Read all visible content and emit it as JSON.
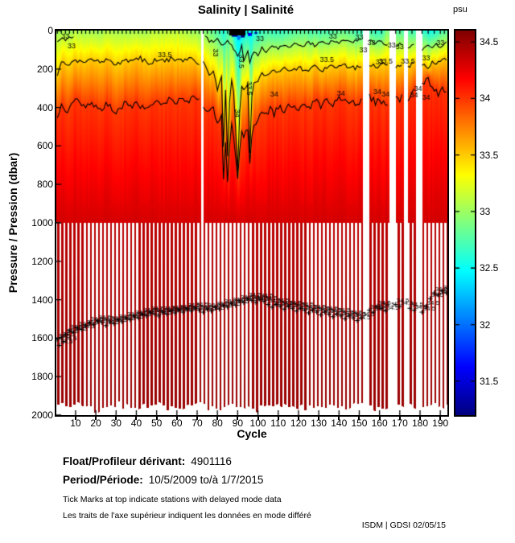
{
  "chart_data": {
    "type": "heatmap",
    "title": "Salinity | Salinité",
    "xlabel": "Cycle",
    "ylabel": "Pressure / Pression (dbar)",
    "x_range": [
      1,
      193
    ],
    "y_range": [
      0,
      2000
    ],
    "x_ticks": [
      10,
      20,
      30,
      40,
      50,
      60,
      70,
      80,
      90,
      100,
      110,
      120,
      130,
      140,
      150,
      160,
      170,
      180,
      190
    ],
    "y_ticks": [
      0,
      200,
      400,
      600,
      800,
      1000,
      1200,
      1400,
      1600,
      1800,
      2000
    ],
    "grid": false,
    "colorbar": {
      "label": "psu",
      "ticks": [
        34.5,
        34,
        33.5,
        33,
        32.5,
        32,
        31.5
      ],
      "value_range": [
        31.2,
        34.6
      ],
      "colormap": "jet"
    },
    "deep_section_top": 1000,
    "deep_value": "34.5",
    "missing_cycles": [
      [
        72,
        72
      ],
      [
        152,
        154
      ],
      [
        165,
        167
      ],
      [
        172,
        173
      ],
      [
        178,
        180
      ]
    ],
    "surface_salinity": [
      [
        1,
        33.0
      ],
      [
        10,
        33.05
      ],
      [
        20,
        33.0
      ],
      [
        30,
        33.06
      ],
      [
        40,
        33.0
      ],
      [
        50,
        33.08
      ],
      [
        60,
        33.1
      ],
      [
        68,
        33.0
      ],
      [
        74,
        32.9
      ],
      [
        80,
        32.72
      ],
      [
        83,
        32.55
      ],
      [
        86,
        32.8
      ],
      [
        88,
        32.45
      ],
      [
        90,
        32.35
      ],
      [
        93,
        32.5
      ],
      [
        96,
        32.42
      ],
      [
        99,
        32.6
      ],
      [
        103,
        32.72
      ],
      [
        108,
        32.62
      ],
      [
        115,
        32.7
      ],
      [
        122,
        32.78
      ],
      [
        130,
        32.68
      ],
      [
        138,
        32.76
      ],
      [
        145,
        32.8
      ],
      [
        150,
        32.62
      ],
      [
        155,
        32.7
      ],
      [
        160,
        32.6
      ],
      [
        163,
        32.88
      ],
      [
        168,
        32.78
      ],
      [
        175,
        32.68
      ],
      [
        182,
        32.58
      ],
      [
        186,
        32.5
      ],
      [
        190,
        32.68
      ],
      [
        193,
        32.78
      ]
    ],
    "iso_33_5_depth": [
      [
        1,
        235
      ],
      [
        3,
        160
      ],
      [
        6,
        185
      ],
      [
        10,
        150
      ],
      [
        14,
        172
      ],
      [
        18,
        148
      ],
      [
        22,
        168
      ],
      [
        26,
        152
      ],
      [
        30,
        176
      ],
      [
        34,
        150
      ],
      [
        38,
        162
      ],
      [
        42,
        146
      ],
      [
        46,
        166
      ],
      [
        50,
        150
      ],
      [
        54,
        162
      ],
      [
        58,
        142
      ],
      [
        62,
        156
      ],
      [
        66,
        146
      ],
      [
        70,
        162
      ],
      [
        74,
        175
      ],
      [
        76,
        240
      ],
      [
        78,
        200
      ],
      [
        80,
        310
      ],
      [
        82,
        235
      ],
      [
        83,
        600
      ],
      [
        84,
        310
      ],
      [
        85,
        645
      ],
      [
        86,
        360
      ],
      [
        87,
        255
      ],
      [
        88,
        310
      ],
      [
        90,
        740
      ],
      [
        91,
        410
      ],
      [
        92,
        285
      ],
      [
        93,
        305
      ],
      [
        95,
        265
      ],
      [
        96,
        645
      ],
      [
        97,
        355
      ],
      [
        98,
        285
      ],
      [
        100,
        262
      ],
      [
        102,
        225
      ],
      [
        104,
        232
      ],
      [
        107,
        205
      ],
      [
        110,
        218
      ],
      [
        113,
        198
      ],
      [
        116,
        212
      ],
      [
        120,
        192
      ],
      [
        124,
        206
      ],
      [
        128,
        188
      ],
      [
        132,
        202
      ],
      [
        136,
        186
      ],
      [
        140,
        196
      ],
      [
        144,
        182
      ],
      [
        148,
        196
      ],
      [
        151,
        186
      ],
      [
        155,
        176
      ],
      [
        158,
        192
      ],
      [
        160,
        176
      ],
      [
        163,
        182
      ],
      [
        167,
        192
      ],
      [
        170,
        182
      ],
      [
        174,
        186
      ],
      [
        177,
        176
      ],
      [
        181,
        182
      ],
      [
        184,
        192
      ],
      [
        186,
        172
      ],
      [
        188,
        162
      ],
      [
        190,
        152
      ],
      [
        193,
        158
      ]
    ],
    "iso_34_depth": [
      [
        1,
        455
      ],
      [
        3,
        385
      ],
      [
        6,
        425
      ],
      [
        10,
        362
      ],
      [
        14,
        402
      ],
      [
        18,
        372
      ],
      [
        22,
        412
      ],
      [
        26,
        382
      ],
      [
        30,
        422
      ],
      [
        34,
        382
      ],
      [
        38,
        402
      ],
      [
        41,
        372
      ],
      [
        44,
        422
      ],
      [
        47,
        382
      ],
      [
        50,
        362
      ],
      [
        53,
        392
      ],
      [
        56,
        362
      ],
      [
        59,
        382
      ],
      [
        62,
        352
      ],
      [
        65,
        372
      ],
      [
        68,
        342
      ],
      [
        70,
        362
      ],
      [
        73,
        385
      ],
      [
        76,
        425
      ],
      [
        78,
        395
      ],
      [
        80,
        485
      ],
      [
        82,
        445
      ],
      [
        83,
        785
      ],
      [
        84,
        565
      ],
      [
        85,
        805
      ],
      [
        86,
        605
      ],
      [
        87,
        485
      ],
      [
        88,
        565
      ],
      [
        90,
        785
      ],
      [
        91,
        625
      ],
      [
        92,
        525
      ],
      [
        93,
        565
      ],
      [
        95,
        505
      ],
      [
        96,
        705
      ],
      [
        97,
        565
      ],
      [
        98,
        485
      ],
      [
        100,
        465
      ],
      [
        102,
        425
      ],
      [
        104,
        445
      ],
      [
        106,
        405
      ],
      [
        108,
        435
      ],
      [
        110,
        395
      ],
      [
        113,
        425
      ],
      [
        116,
        385
      ],
      [
        119,
        415
      ],
      [
        122,
        375
      ],
      [
        125,
        405
      ],
      [
        128,
        365
      ],
      [
        131,
        395
      ],
      [
        134,
        355
      ],
      [
        137,
        385
      ],
      [
        140,
        345
      ],
      [
        143,
        375
      ],
      [
        146,
        355
      ],
      [
        149,
        385
      ],
      [
        151,
        365
      ],
      [
        155,
        345
      ],
      [
        158,
        375
      ],
      [
        160,
        355
      ],
      [
        163,
        385
      ],
      [
        166,
        365
      ],
      [
        168,
        345
      ],
      [
        170,
        365
      ],
      [
        172,
        335
      ],
      [
        174,
        355
      ],
      [
        176,
        325
      ],
      [
        178,
        305
      ],
      [
        180,
        285
      ],
      [
        182,
        262
      ],
      [
        183,
        252
      ],
      [
        185,
        272
      ],
      [
        187,
        305
      ],
      [
        189,
        325
      ],
      [
        191,
        305
      ],
      [
        193,
        325
      ]
    ],
    "iso_33_segments": [
      [
        [
          1,
          62
        ],
        [
          3,
          36
        ],
        [
          5,
          55
        ],
        [
          7,
          40
        ],
        [
          9,
          28
        ]
      ],
      [
        [
          74,
          30
        ],
        [
          76,
          55
        ],
        [
          78,
          62
        ],
        [
          80,
          42
        ],
        [
          83,
          82
        ],
        [
          85,
          52
        ],
        [
          88,
          92
        ],
        [
          90,
          132
        ],
        [
          92,
          82
        ],
        [
          93,
          152
        ],
        [
          95,
          102
        ],
        [
          96,
          162
        ],
        [
          98,
          112
        ],
        [
          100,
          132
        ],
        [
          102,
          92
        ],
        [
          104,
          112
        ],
        [
          107,
          82
        ],
        [
          110,
          96
        ],
        [
          113,
          72
        ],
        [
          116,
          86
        ],
        [
          119,
          66
        ],
        [
          122,
          82
        ],
        [
          125,
          62
        ],
        [
          128,
          76
        ],
        [
          131,
          56
        ],
        [
          134,
          70
        ],
        [
          137,
          52
        ],
        [
          140,
          66
        ],
        [
          143,
          46
        ],
        [
          146,
          60
        ],
        [
          149,
          50
        ],
        [
          151,
          42
        ]
      ],
      [
        [
          155,
          46
        ],
        [
          158,
          72
        ],
        [
          160,
          52
        ],
        [
          163,
          82
        ],
        [
          166,
          62
        ],
        [
          168,
          86
        ],
        [
          170,
          66
        ],
        [
          174,
          92
        ],
        [
          177,
          72
        ],
        [
          181,
          96
        ],
        [
          184,
          76
        ],
        [
          186,
          92
        ],
        [
          188,
          72
        ],
        [
          190,
          86
        ],
        [
          193,
          62
        ]
      ]
    ],
    "profile_bottom_depth": [
      [
        1,
        1958
      ],
      [
        10,
        1948
      ],
      [
        20,
        1972
      ],
      [
        30,
        1944
      ],
      [
        40,
        1968
      ],
      [
        50,
        1948
      ],
      [
        60,
        1972
      ],
      [
        70,
        1944
      ],
      [
        80,
        1968
      ],
      [
        90,
        1948
      ],
      [
        100,
        1972
      ],
      [
        110,
        1948
      ],
      [
        120,
        1968
      ],
      [
        130,
        1944
      ],
      [
        140,
        1968
      ],
      [
        150,
        1948
      ],
      [
        160,
        1972
      ],
      [
        170,
        1948
      ],
      [
        180,
        1968
      ],
      [
        190,
        1948
      ],
      [
        193,
        1958
      ]
    ],
    "deep_point_labels": [
      [
        1,
        1595
      ],
      [
        2,
        1625
      ],
      [
        3,
        1585
      ],
      [
        4,
        1605
      ],
      [
        5,
        1568
      ],
      [
        7,
        1548
      ],
      [
        9,
        1556
      ],
      [
        11,
        1532
      ],
      [
        13,
        1542
      ],
      [
        15,
        1522
      ],
      [
        17,
        1508
      ],
      [
        19,
        1516
      ],
      [
        21,
        1498
      ],
      [
        23,
        1506
      ],
      [
        25,
        1522
      ],
      [
        27,
        1502
      ],
      [
        29,
        1512
      ],
      [
        31,
        1492
      ],
      [
        33,
        1502
      ],
      [
        35,
        1482
      ],
      [
        37,
        1492
      ],
      [
        39,
        1472
      ],
      [
        41,
        1482
      ],
      [
        43,
        1462
      ],
      [
        45,
        1472
      ],
      [
        47,
        1452
      ],
      [
        49,
        1462
      ],
      [
        51,
        1472
      ],
      [
        53,
        1452
      ],
      [
        55,
        1462
      ],
      [
        57,
        1446
      ],
      [
        59,
        1456
      ],
      [
        61,
        1442
      ],
      [
        63,
        1452
      ],
      [
        65,
        1436
      ],
      [
        67,
        1446
      ],
      [
        69,
        1432
      ],
      [
        71,
        1442
      ],
      [
        73,
        1452
      ],
      [
        75,
        1436
      ],
      [
        77,
        1446
      ],
      [
        79,
        1426
      ],
      [
        81,
        1436
      ],
      [
        83,
        1416
      ],
      [
        85,
        1426
      ],
      [
        87,
        1406
      ],
      [
        89,
        1416
      ],
      [
        91,
        1392
      ],
      [
        93,
        1402
      ],
      [
        95,
        1382
      ],
      [
        97,
        1392
      ],
      [
        99,
        1402
      ],
      [
        101,
        1386
      ],
      [
        103,
        1396
      ],
      [
        105,
        1412
      ],
      [
        107,
        1426
      ],
      [
        109,
        1412
      ],
      [
        111,
        1422
      ],
      [
        113,
        1436
      ],
      [
        115,
        1422
      ],
      [
        117,
        1432
      ],
      [
        119,
        1446
      ],
      [
        121,
        1432
      ],
      [
        123,
        1442
      ],
      [
        125,
        1456
      ],
      [
        127,
        1442
      ],
      [
        129,
        1452
      ],
      [
        131,
        1466
      ],
      [
        133,
        1452
      ],
      [
        135,
        1462
      ],
      [
        137,
        1476
      ],
      [
        139,
        1462
      ],
      [
        141,
        1472
      ],
      [
        143,
        1486
      ],
      [
        145,
        1472
      ],
      [
        147,
        1482
      ],
      [
        149,
        1496
      ],
      [
        151,
        1482
      ],
      [
        155,
        1442
      ],
      [
        157,
        1452
      ],
      [
        159,
        1422
      ],
      [
        161,
        1432
      ],
      [
        163,
        1446
      ],
      [
        168,
        1412
      ],
      [
        170,
        1422
      ],
      [
        175,
        1432
      ],
      [
        177,
        1442
      ],
      [
        181,
        1452
      ],
      [
        183,
        1422
      ],
      [
        185,
        1382
      ],
      [
        187,
        1352
      ],
      [
        189,
        1362
      ],
      [
        191,
        1342
      ],
      [
        193,
        1352
      ]
    ],
    "contour_labels": [
      {
        "t": "33",
        "c": 5,
        "d": 30
      },
      {
        "t": "33",
        "c": 8,
        "d": 78
      },
      {
        "t": "33",
        "c": 101,
        "d": 40
      },
      {
        "t": "33",
        "c": 137,
        "d": 30
      },
      {
        "t": "33",
        "c": 150,
        "d": 35
      },
      {
        "t": "33",
        "c": 152,
        "d": 100
      },
      {
        "t": "33",
        "c": 156,
        "d": 62
      },
      {
        "t": "33",
        "c": 160,
        "d": 162
      },
      {
        "t": "33",
        "c": 166,
        "d": 76
      },
      {
        "t": "33",
        "c": 170,
        "d": 82
      },
      {
        "t": "33",
        "c": 183,
        "d": 142
      },
      {
        "t": "33",
        "c": 190,
        "d": 62
      },
      {
        "t": "33.5",
        "c": 54,
        "d": 126
      },
      {
        "t": "33.5",
        "c": 134,
        "d": 152
      },
      {
        "t": "33.5",
        "c": 163,
        "d": 160
      },
      {
        "t": "33.5",
        "c": 174,
        "d": 160
      },
      {
        "t": "34",
        "c": 108,
        "d": 330
      },
      {
        "t": "34",
        "c": 141,
        "d": 325
      },
      {
        "t": "34",
        "c": 159,
        "d": 320
      },
      {
        "t": "34",
        "c": 163,
        "d": 332
      },
      {
        "t": "34",
        "c": 177,
        "d": 336
      },
      {
        "t": "34",
        "c": 183,
        "d": 348
      },
      {
        "t": "34",
        "c": 179,
        "d": 300
      },
      {
        "t": "33.5",
        "c": 92,
        "d": 160,
        "r": 90
      },
      {
        "t": "33",
        "c": 79,
        "d": 115,
        "r": 90
      },
      {
        "t": "34",
        "c": 90,
        "d": 430,
        "r": 90
      },
      {
        "t": "33.5",
        "c": 96,
        "d": 300,
        "r": 90
      }
    ],
    "surface_spots": [
      {
        "c": 88.5,
        "d": 10,
        "w": 3,
        "h": 22,
        "s": 31.3
      },
      {
        "c": 92.5,
        "d": 6,
        "w": 2,
        "h": 30,
        "s": 30.9
      },
      {
        "c": 96,
        "d": 12,
        "w": 2,
        "h": 16,
        "s": 31.6
      },
      {
        "c": 90.5,
        "d": 28,
        "w": 1.5,
        "h": 20,
        "s": 32.0
      },
      {
        "c": 99,
        "d": 8,
        "w": 1.5,
        "h": 10,
        "s": 31.8
      }
    ],
    "top_ticks": {
      "range": [
        1,
        151,
        2
      ],
      "extra": [
        156,
        158,
        161,
        168,
        170,
        176,
        181,
        184,
        187,
        190,
        192
      ],
      "cluster": [
        86,
        94
      ]
    }
  },
  "footer": {
    "float_label": "Float/Profileur dérivant:",
    "float_value": "4901116",
    "period_label": "Period/Période:",
    "period_value": "10/5/2009  to/à  1/7/2015",
    "note_en": "Tick Marks at top indicate stations with delayed mode data",
    "note_fr": "Les traits de l'axe supérieur indiquent les données en mode différé",
    "credit": "ISDM | GDSI  02/05/15"
  }
}
